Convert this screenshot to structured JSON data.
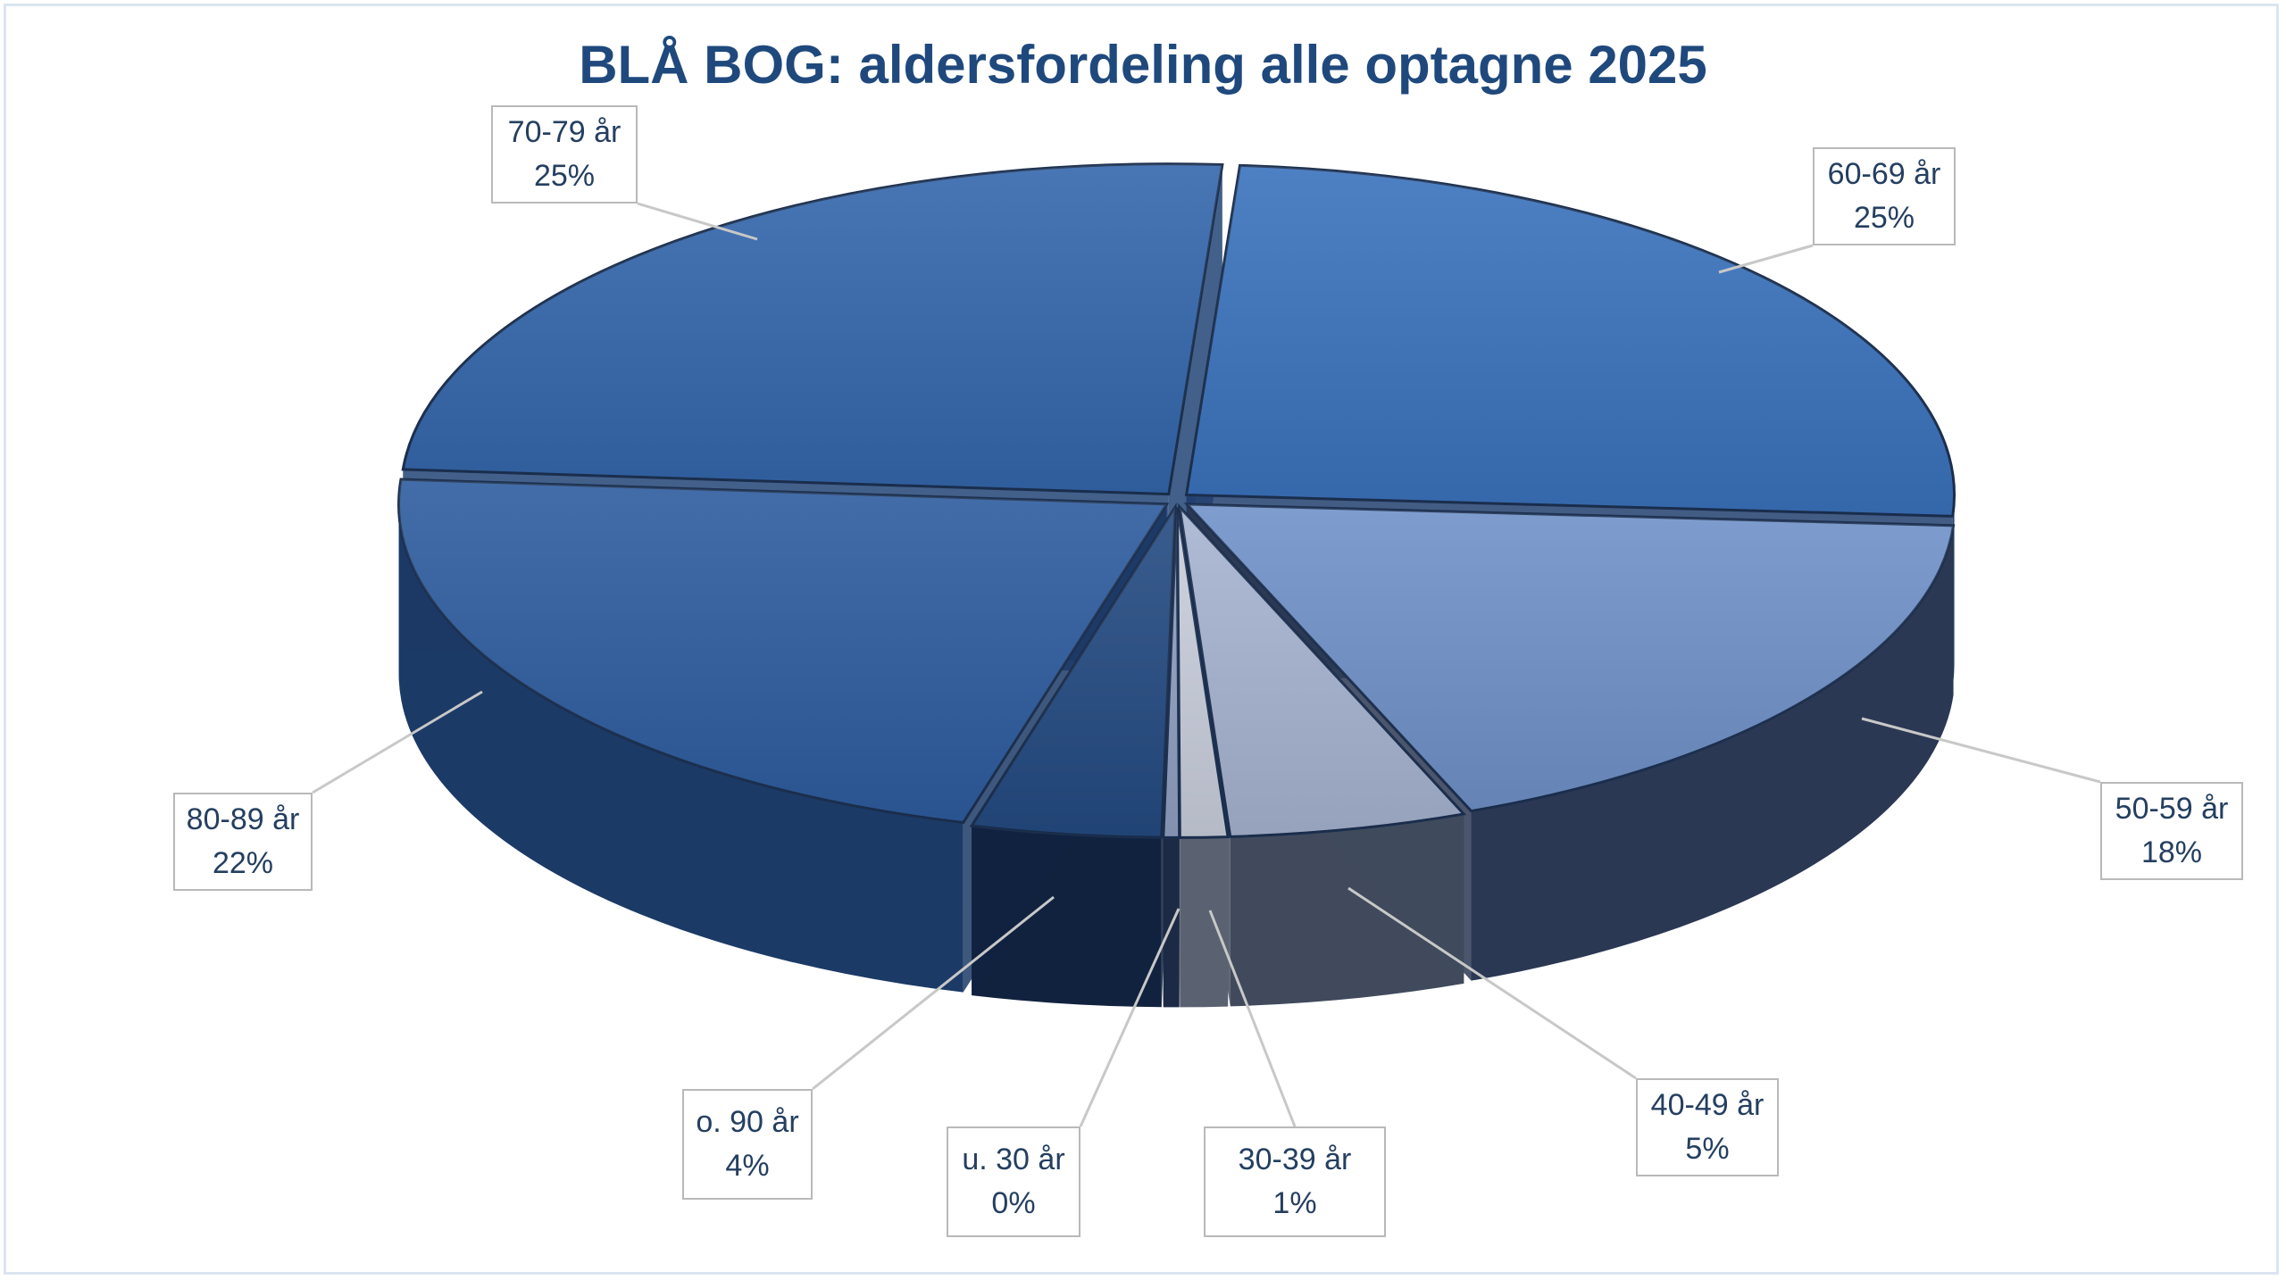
{
  "chart_data": {
    "type": "pie",
    "title": "BLÅ BOG: aldersfordeling alle optagne 2025",
    "slices": [
      {
        "label": "60-69 år",
        "value": 25,
        "value_label": "25%",
        "color": "#3a72bd",
        "side": "#22406f"
      },
      {
        "label": "50-59 år",
        "value": 18,
        "value_label": "18%",
        "color": "#7092c9",
        "side": "#2b3854"
      },
      {
        "label": "40-49 år",
        "value": 5,
        "value_label": "5%",
        "color": "#a7b4d1",
        "side": "#404a5c"
      },
      {
        "label": "30-39 år",
        "value": 1,
        "value_label": "1%",
        "color": "#c9cfdc",
        "side": "#5a6170"
      },
      {
        "label": "u. 30 år",
        "value": 0,
        "value_label": "0%",
        "color": "#8fa1c2",
        "side": "#1c2a45"
      },
      {
        "label": "o. 90 år",
        "value": 4,
        "value_label": "4%",
        "color": "#244b82",
        "side": "#11223f"
      },
      {
        "label": "80-89 år",
        "value": 22,
        "value_label": "22%",
        "color": "#2e5d9f",
        "side": "#1c3a66"
      },
      {
        "label": "70-79 år",
        "value": 25,
        "value_label": "25%",
        "color": "#3467ac",
        "side": "#214474"
      }
    ],
    "legend": "none",
    "exploded": true
  }
}
